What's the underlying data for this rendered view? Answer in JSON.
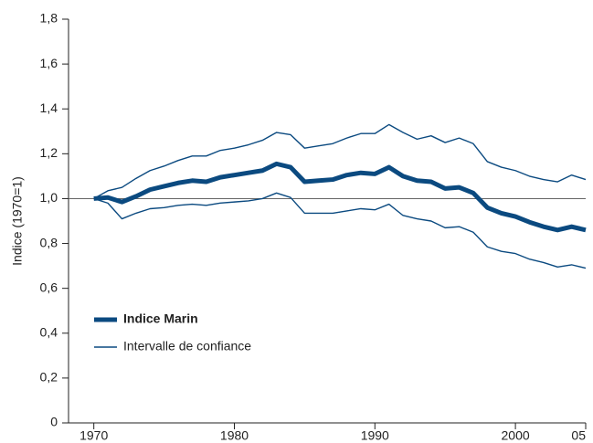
{
  "chart_data": {
    "type": "line",
    "y_label": "Indice (1970=1)",
    "x": [
      1970,
      1971,
      1972,
      1973,
      1974,
      1975,
      1976,
      1977,
      1978,
      1979,
      1980,
      1981,
      1982,
      1983,
      1984,
      1985,
      1986,
      1987,
      1988,
      1989,
      1990,
      1991,
      1992,
      1993,
      1994,
      1995,
      1996,
      1997,
      1998,
      1999,
      2000,
      2001,
      2002,
      2003,
      2004,
      2005
    ],
    "series": [
      {
        "name": "Indice Marin",
        "color": "#0b4a80",
        "values": [
          1.0,
          1.005,
          0.985,
          1.01,
          1.04,
          1.055,
          1.07,
          1.08,
          1.075,
          1.095,
          1.105,
          1.115,
          1.125,
          1.155,
          1.14,
          1.075,
          1.08,
          1.085,
          1.105,
          1.115,
          1.11,
          1.14,
          1.1,
          1.08,
          1.075,
          1.045,
          1.05,
          1.025,
          0.96,
          0.935,
          0.92,
          0.895,
          0.875,
          0.86,
          0.875,
          0.86
        ]
      },
      {
        "name": "Intervalle de confiance",
        "color": "#0b4a80",
        "upper": [
          1.0,
          1.035,
          1.05,
          1.09,
          1.125,
          1.145,
          1.17,
          1.19,
          1.19,
          1.215,
          1.225,
          1.24,
          1.26,
          1.295,
          1.285,
          1.225,
          1.235,
          1.245,
          1.27,
          1.29,
          1.29,
          1.33,
          1.295,
          1.265,
          1.28,
          1.25,
          1.27,
          1.245,
          1.165,
          1.14,
          1.125,
          1.1,
          1.085,
          1.075,
          1.105,
          1.085
        ],
        "lower": [
          1.0,
          0.98,
          0.91,
          0.935,
          0.955,
          0.96,
          0.97,
          0.975,
          0.97,
          0.98,
          0.985,
          0.99,
          1.0,
          1.025,
          1.005,
          0.935,
          0.935,
          0.935,
          0.945,
          0.955,
          0.95,
          0.975,
          0.925,
          0.91,
          0.9,
          0.87,
          0.875,
          0.85,
          0.785,
          0.765,
          0.755,
          0.73,
          0.715,
          0.695,
          0.705,
          0.69
        ]
      }
    ],
    "xlim": [
      1968.2,
      2005
    ],
    "xticks": [
      1970,
      1980,
      1990,
      2000,
      {
        "value": 2005,
        "label": "05"
      }
    ],
    "ylim": [
      0,
      1.8
    ],
    "yticks": [
      0,
      {
        "value": 0.2,
        "label": "0,2"
      },
      {
        "value": 0.4,
        "label": "0,4"
      },
      {
        "value": 0.6,
        "label": "0,6"
      },
      {
        "value": 0.8,
        "label": "0,8"
      },
      {
        "value": 1.0,
        "label": "1,0"
      },
      {
        "value": 1.2,
        "label": "1,2"
      },
      {
        "value": 1.4,
        "label": "1,4"
      },
      {
        "value": 1.6,
        "label": "1,6"
      },
      {
        "value": 1.8,
        "label": "1,8"
      }
    ],
    "reference_line": 1,
    "legend": "lower left"
  }
}
